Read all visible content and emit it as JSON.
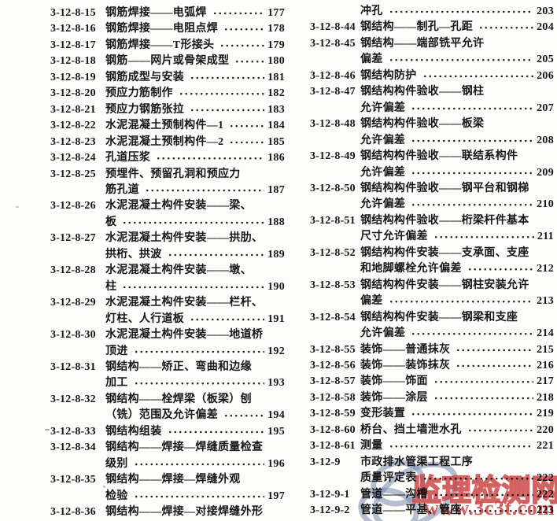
{
  "page_type": "book-table-of-contents-scan",
  "colors": {
    "ink": "#161616",
    "paper": "#fcfcfb",
    "watermark_red": "#ce4545",
    "watermark_logo_blue": "#7d8cb2"
  },
  "toc": {
    "left_column": {
      "entries": [
        {
          "num": "3-12-8-15",
          "lines": [
            "钢筋焊接——电弧焊"
          ],
          "page": "177"
        },
        {
          "num": "3-12-8-16",
          "lines": [
            "钢筋焊接——电阻点焊"
          ],
          "page": "178"
        },
        {
          "num": "3-12-8-17",
          "lines": [
            "钢筋焊接——T形接头"
          ],
          "page": "179"
        },
        {
          "num": "3-12-8-18",
          "lines": [
            "钢筋——网片或骨架成型"
          ],
          "page": "180"
        },
        {
          "num": "3-12-8-19",
          "lines": [
            "钢筋成型与安装"
          ],
          "page": "181"
        },
        {
          "num": "3-12-8-20",
          "lines": [
            "预应力筋制作"
          ],
          "page": "182"
        },
        {
          "num": "3-12-8-21",
          "lines": [
            "预应力钢筋张拉"
          ],
          "page": "183"
        },
        {
          "num": "3-12-8-22",
          "lines": [
            "水泥混凝土预制构件—1"
          ],
          "page": "184"
        },
        {
          "num": "3-12-8-23",
          "lines": [
            "水泥混凝土预制构件—2"
          ],
          "page": "185"
        },
        {
          "num": "3-12-8-24",
          "lines": [
            "孔道压浆"
          ],
          "page": "186"
        },
        {
          "num": "3-12-8-25",
          "lines": [
            "预埋件、预留孔洞和预应力",
            "筋孔道"
          ],
          "page": "187"
        },
        {
          "num": "3-12-8-26",
          "lines": [
            "水泥混凝土构件安装——梁、",
            "板"
          ],
          "page": "188"
        },
        {
          "num": "3-12-8-27",
          "lines": [
            "水泥混凝土构件安装——拱肋、",
            "拱桁、拱波"
          ],
          "page": "189"
        },
        {
          "num": "3-12-8-28",
          "lines": [
            "水泥混凝土构件安装——墩、",
            "柱"
          ],
          "page": "190"
        },
        {
          "num": "3-12-8-29",
          "lines": [
            "水泥混凝土构件安装——栏杆、",
            "灯柱、人行道板"
          ],
          "page": "191"
        },
        {
          "num": "3-12-8-30",
          "lines": [
            "水泥混凝土构件安装——地道桥",
            "顶进"
          ],
          "page": "192"
        },
        {
          "num": "3-12-8-31",
          "lines": [
            "钢结构——矫正、弯曲和边缘",
            "加工"
          ],
          "page": "193"
        },
        {
          "num": "3-12-8-32",
          "lines": [
            "钢结构——栓焊梁（板梁）刨",
            "（铣）范围及允许偏差"
          ],
          "page": "194"
        },
        {
          "num": "3-12-8-33",
          "lines": [
            "钢结构组装"
          ],
          "page": "195"
        },
        {
          "num": "3-12-8-34",
          "lines": [
            "钢结构——焊接—焊缝质量检查",
            "级别"
          ],
          "page": "196"
        },
        {
          "num": "3-12-8-35",
          "lines": [
            "钢结构——焊接—焊缝外观",
            "检验"
          ],
          "page": "197"
        },
        {
          "num": "3-12-8-36",
          "lines": [
            "钢结构——焊接—对接焊缝外形"
          ],
          "page": ""
        }
      ]
    },
    "right_column": {
      "entries": [
        {
          "num": "",
          "lines": [
            "冲孔"
          ],
          "page": "203"
        },
        {
          "num": "3-12-8-44",
          "lines": [
            "钢结构——制孔—孔距"
          ],
          "page": "204"
        },
        {
          "num": "3-12-8-45",
          "lines": [
            "钢结构——端部铣平允许",
            "偏差"
          ],
          "page": "205"
        },
        {
          "num": "3-12-8-46",
          "lines": [
            "钢结构防护"
          ],
          "page": "206"
        },
        {
          "num": "3-12-8-47",
          "lines": [
            "钢结构构件验收——钢柱",
            "允许偏差"
          ],
          "page": "207"
        },
        {
          "num": "3-12-8-48",
          "lines": [
            "钢结构构件验收——板梁",
            "允许偏差"
          ],
          "page": "208"
        },
        {
          "num": "3-12-8-49",
          "lines": [
            "钢结构构件验收——联结系构件",
            "允许偏差"
          ],
          "page": "209"
        },
        {
          "num": "3-12-8-50",
          "lines": [
            "钢结构构件验收——钢平台和钢梯",
            "允许偏差"
          ],
          "page": "210"
        },
        {
          "num": "3-12-8-51",
          "lines": [
            "钢结构构件验收——桁梁杆件基本",
            "尺寸允许偏差"
          ],
          "page": "211"
        },
        {
          "num": "3-12-8-52",
          "lines": [
            "钢结构构件安装——支承面、支座",
            "和地脚螺栓允许偏差"
          ],
          "page": "212"
        },
        {
          "num": "3-12-8-53",
          "lines": [
            "钢结构构件安装——钢柱安装允许",
            "偏差"
          ],
          "page": "213"
        },
        {
          "num": "3-12-8-54",
          "lines": [
            "钢结构构件安装——钢梁和支座",
            "允许偏差"
          ],
          "page": "214"
        },
        {
          "num": "3-12-8-55",
          "lines": [
            "装饰——普通抹灰"
          ],
          "page": "215"
        },
        {
          "num": "3-12-8-56",
          "lines": [
            "装饰——装饰抹灰"
          ],
          "page": "216"
        },
        {
          "num": "3-12-8-57",
          "lines": [
            "装饰——饰面"
          ],
          "page": "217"
        },
        {
          "num": "3-12-8-58",
          "lines": [
            "装饰——涂层"
          ],
          "page": "218"
        },
        {
          "num": "3-12-8-59",
          "lines": [
            "变形装置"
          ],
          "page": "219"
        },
        {
          "num": "3-12-8-60",
          "lines": [
            "桥台、挡土墙泄水孔"
          ],
          "page": "220"
        },
        {
          "num": "3-12-8-61",
          "lines": [
            "测量"
          ],
          "page": "221"
        },
        {
          "num": "3-12-9",
          "lines": [
            "市政排水管渠工程工序",
            "质量评定表"
          ],
          "page": "222"
        },
        {
          "num": "3-12-9-1",
          "lines": [
            "管道——沟槽"
          ],
          "page": "222"
        },
        {
          "num": "3-12-9-2",
          "lines": [
            "管道——平基、管座"
          ],
          "page": "223"
        }
      ]
    }
  },
  "watermark": {
    "site_name": "监理检测网",
    "site_url": "www.3c3t.com",
    "logo": "three-interlocking-rings"
  }
}
